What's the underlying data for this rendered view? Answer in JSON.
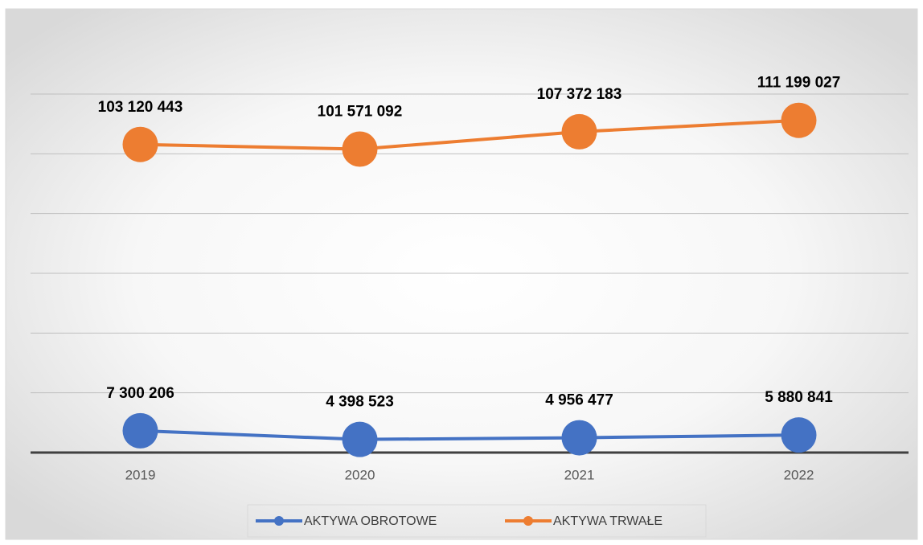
{
  "chart_data": {
    "type": "line",
    "categories": [
      "2019",
      "2020",
      "2021",
      "2022"
    ],
    "series": [
      {
        "name": "AKTYWA OBROTOWE",
        "color": "#4472c4",
        "values": [
          7300206,
          4398523,
          4956477,
          5880841
        ],
        "value_labels": [
          "7 300 206",
          "4 398 523",
          "4 956 477",
          "5 880 841"
        ]
      },
      {
        "name": "AKTYWA TRWAŁE",
        "color": "#ed7d31",
        "values": [
          103120443,
          101571092,
          107372183,
          111199027
        ],
        "value_labels": [
          "103 120 443",
          "101 571 092",
          "107 372 183",
          "111 199 027"
        ]
      }
    ],
    "ylim": [
      0,
      120000000
    ],
    "yticks": [
      0,
      20000000,
      40000000,
      60000000,
      80000000,
      100000000,
      120000000
    ],
    "grid": true,
    "legend": "bottom"
  }
}
